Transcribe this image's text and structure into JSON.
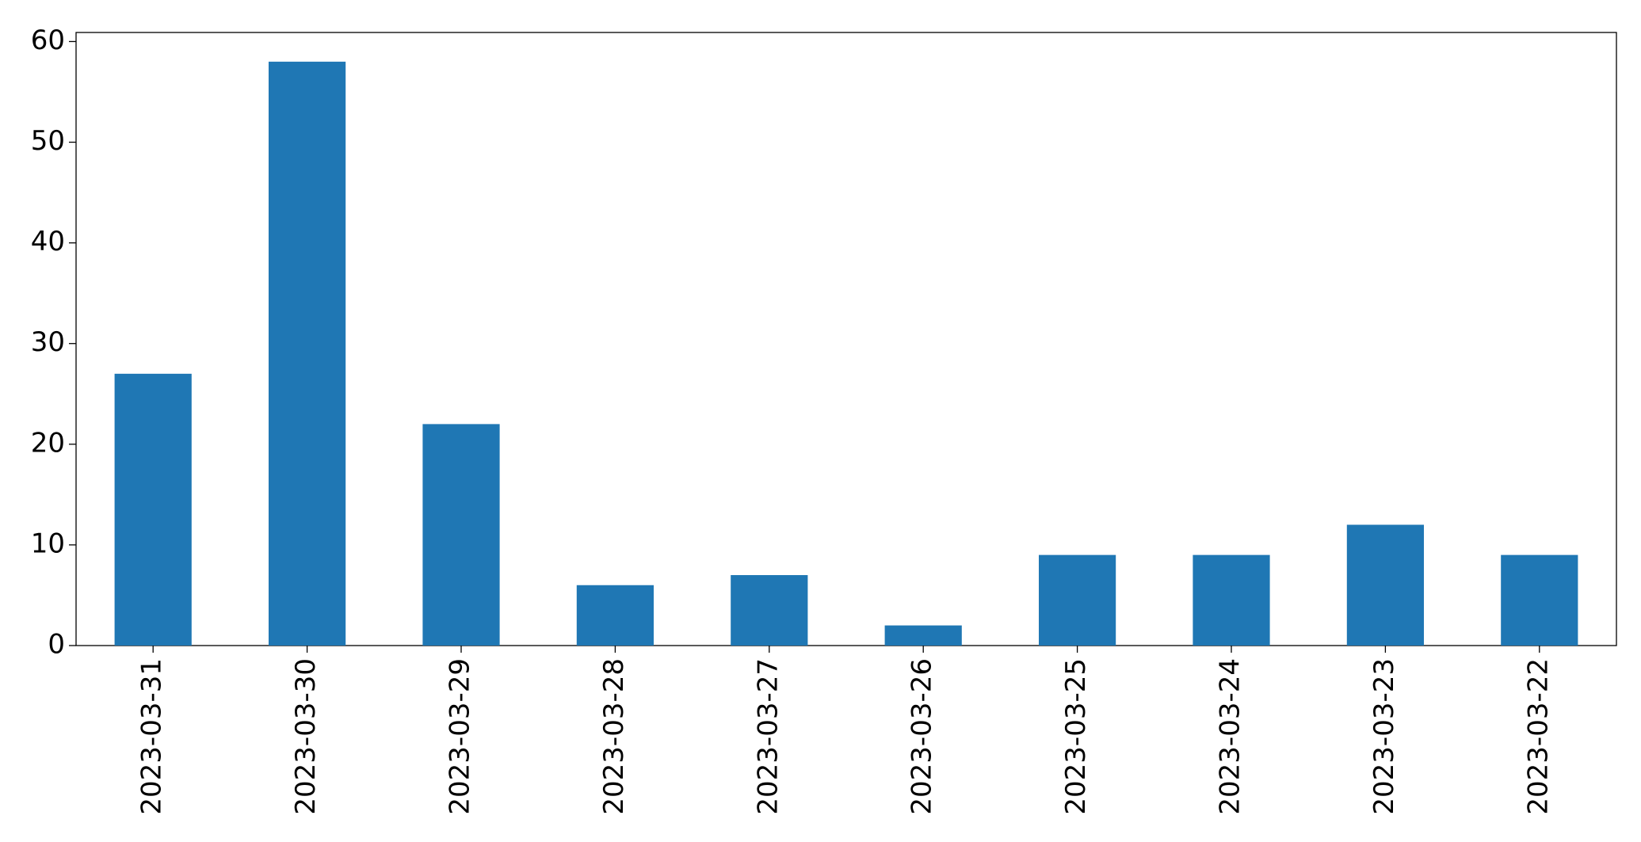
{
  "chart_data": {
    "type": "bar",
    "categories": [
      "2023-03-31",
      "2023-03-30",
      "2023-03-29",
      "2023-03-28",
      "2023-03-27",
      "2023-03-26",
      "2023-03-25",
      "2023-03-24",
      "2023-03-23",
      "2023-03-22"
    ],
    "values": [
      27,
      58,
      22,
      6,
      7,
      2,
      9,
      9,
      12,
      9
    ],
    "color": "#1f77b4",
    "ylim": [
      0,
      60.9
    ],
    "yticks": [
      0,
      10,
      20,
      30,
      40,
      50,
      60
    ],
    "grid": false
  }
}
